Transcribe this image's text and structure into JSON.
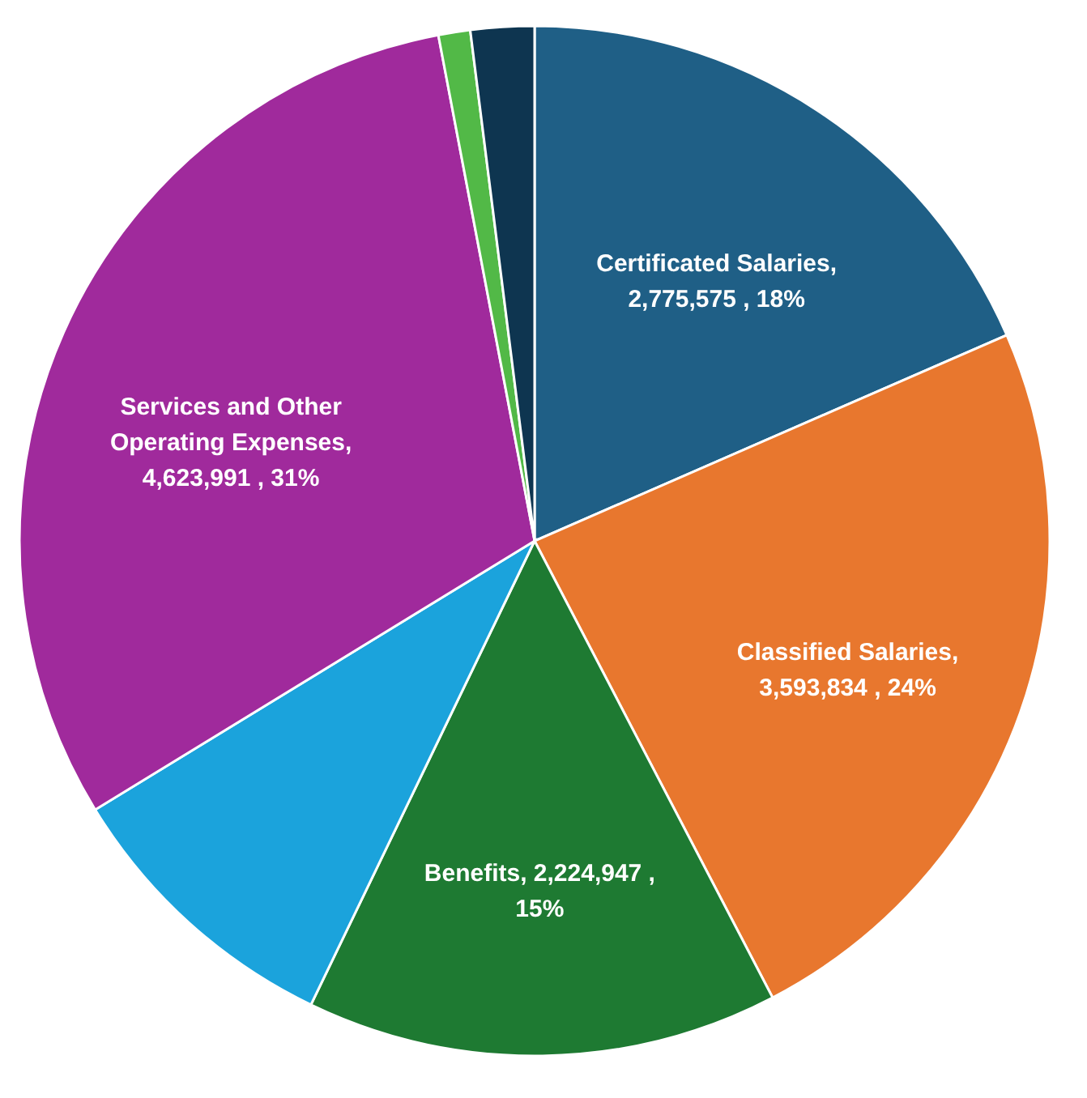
{
  "chart_data": {
    "type": "pie",
    "categories": [
      "Certificated Salaries",
      "Classified Salaries",
      "Benefits",
      null,
      "Services and Other Operating Expenses",
      null,
      null
    ],
    "values": [
      2775575,
      3593834,
      2224947,
      1370000,
      4623991,
      150000,
      300000
    ],
    "colors": [
      "#1f5f86",
      "#e8772e",
      "#1e7a32",
      "#1ba3dc",
      "#a02a9c",
      "#52b947",
      "#0e3550"
    ],
    "value_labels": [
      ", 2,775,575 , 18%",
      ", 3,593,834 , 24%",
      ",  2,224,947 , 15%",
      null,
      ", 4,623,991 , 31%",
      null,
      null
    ],
    "legend": false
  }
}
